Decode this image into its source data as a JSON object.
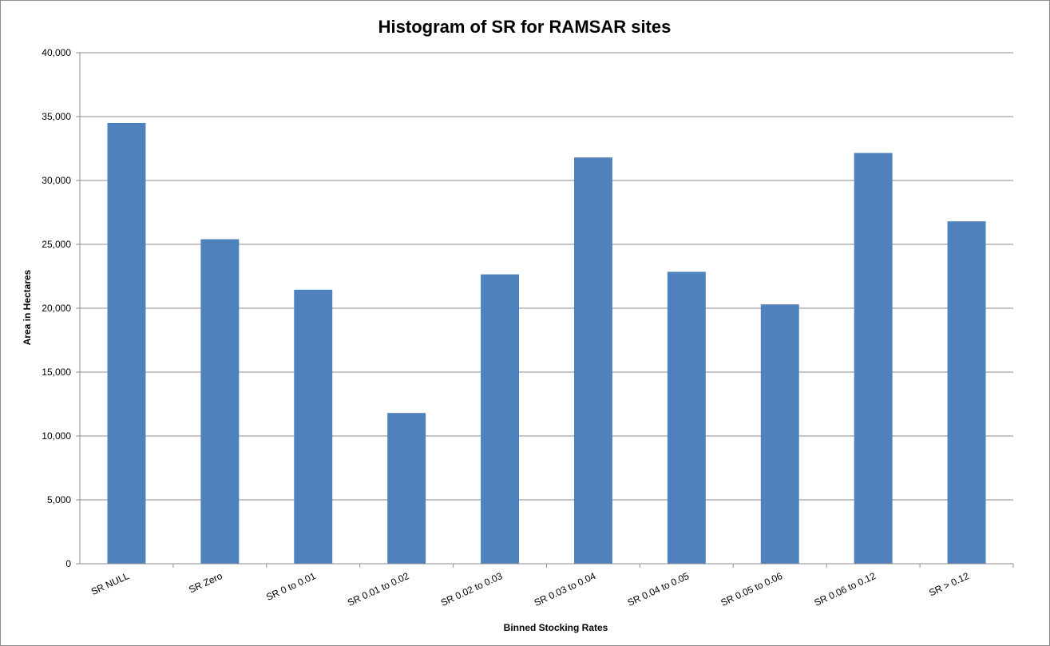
{
  "chart_data": {
    "type": "bar",
    "title": "Histogram of SR for RAMSAR sites",
    "xlabel": "Binned Stocking Rates",
    "ylabel": "Area in Hectares",
    "categories": [
      "SR NULL",
      "SR Zero",
      "SR 0 to 0.01",
      "SR 0.01 to 0.02",
      "SR 0.02 to 0.03",
      "SR 0.03 to 0.04",
      "SR 0.04 to 0.05",
      "SR 0.05 to 0.06",
      "SR 0.06 to 0.12",
      "SR > 0.12"
    ],
    "values": [
      34500,
      25400,
      21450,
      11800,
      22650,
      31800,
      22850,
      20300,
      32150,
      26800
    ],
    "ylim": [
      0,
      40000
    ],
    "yticks": [
      0,
      5000,
      10000,
      15000,
      20000,
      25000,
      30000,
      35000,
      40000
    ],
    "ytick_labels": [
      "0",
      "5,000",
      "10,000",
      "15,000",
      "20,000",
      "25,000",
      "30,000",
      "35,000",
      "40,000"
    ],
    "grid": true,
    "legend": "none",
    "bar_color": "#4F81BD"
  }
}
